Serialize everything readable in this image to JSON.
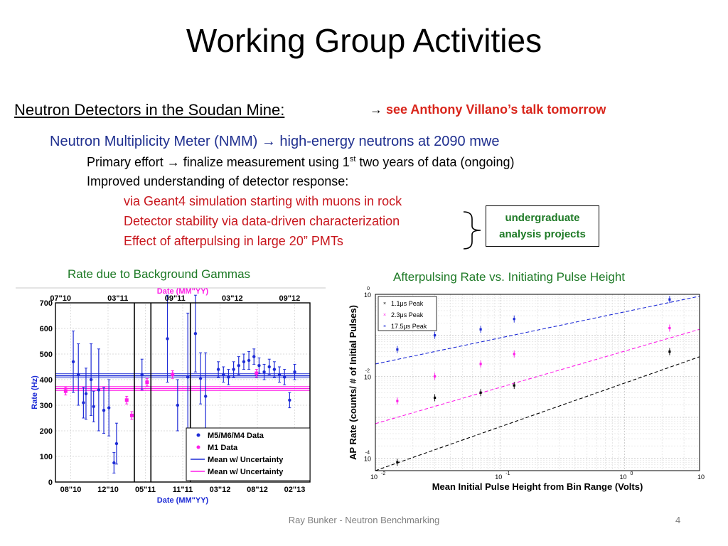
{
  "title": "Working Group Activities",
  "section": {
    "heading": "Neutron Detectors in the Soudan Mine:",
    "arrow": "→",
    "ref": "see Anthony Villano’s talk tomorrow"
  },
  "nmm": {
    "line": "Neutron Multiplicity Meter (NMM)  →  high-energy neutrons at 2090 mwe",
    "primary_pre": "Primary effort  →  finalize measurement using 1",
    "primary_sup": "st",
    "primary_post": " two years of data (ongoing)",
    "improved": "Improved understanding of detector response:",
    "sub": [
      "via Geant4 simulation starting with muons in rock",
      "Detector stability via data-driven characterization",
      "Effect of afterpulsing in large 20” PMTs"
    ],
    "box": [
      "undergraduate",
      "analysis projects"
    ]
  },
  "chart_titles": {
    "left": "Rate due to Background Gammas",
    "right": "Afterpulsing Rate vs. Initiating Pulse Height"
  },
  "footer": "Ray Bunker - Neutron Benchmarking",
  "page_number": "4",
  "colors": {
    "blue_data": "#1d2bd6",
    "magenta_data": "#ff1de8",
    "text_green": "#1e7a26",
    "text_red": "#c8161d",
    "text_blue": "#1f2f8f"
  },
  "chart_data": [
    {
      "type": "scatter",
      "xlabel": "Date (MM\"YY)",
      "ylabel": "Rate (Hz)",
      "ylim": [
        0,
        700
      ],
      "yticks": [
        "0",
        "100",
        "200",
        "300",
        "400",
        "500",
        "600",
        "700"
      ],
      "xticks_bottom": [
        "08\"10",
        "12\"10",
        "05\"11",
        "11\"11",
        "03\"12",
        "08\"12",
        "02\"13"
      ],
      "xticks_top": [
        "07\"10",
        "03\"11",
        "09\"11",
        "03\"12",
        "09\"12"
      ],
      "grid": true,
      "legend_position": "bottom-right",
      "series": [
        {
          "name": "M5/M6/M4 Data",
          "color": "#1d2bd6",
          "points": [
            [
              0.07,
              470,
              120
            ],
            [
              0.09,
              420,
              120
            ],
            [
              0.11,
              310,
              60
            ],
            [
              0.12,
              345,
              100
            ],
            [
              0.14,
              400,
              140
            ],
            [
              0.15,
              295,
              60
            ],
            [
              0.17,
              360,
              160
            ],
            [
              0.19,
              280,
              90
            ],
            [
              0.21,
              290,
              110
            ],
            [
              0.23,
              75,
              40
            ],
            [
              0.24,
              150,
              80
            ],
            [
              0.34,
              420,
              60
            ],
            [
              0.44,
              560,
              170
            ],
            [
              0.48,
              300,
              100
            ],
            [
              0.52,
              410,
              250
            ],
            [
              0.55,
              580,
              150
            ],
            [
              0.57,
              405,
              100
            ],
            [
              0.59,
              335,
              170
            ],
            [
              0.64,
              440,
              30
            ],
            [
              0.66,
              420,
              30
            ],
            [
              0.68,
              410,
              30
            ],
            [
              0.7,
              440,
              30
            ],
            [
              0.72,
              455,
              35
            ],
            [
              0.74,
              470,
              30
            ],
            [
              0.76,
              475,
              35
            ],
            [
              0.78,
              490,
              30
            ],
            [
              0.8,
              455,
              30
            ],
            [
              0.82,
              430,
              30
            ],
            [
              0.84,
              450,
              30
            ],
            [
              0.86,
              440,
              30
            ],
            [
              0.88,
              420,
              30
            ],
            [
              0.9,
              410,
              30
            ],
            [
              0.92,
              320,
              30
            ],
            [
              0.94,
              430,
              30
            ]
          ],
          "mean": 415
        },
        {
          "name": "M1 Data",
          "color": "#ff1de8",
          "points": [
            [
              0.04,
              355,
              15
            ],
            [
              0.28,
              320,
              15
            ],
            [
              0.3,
              260,
              15
            ],
            [
              0.36,
              390,
              15
            ],
            [
              0.46,
              420,
              15
            ],
            [
              0.79,
              425,
              15
            ]
          ],
          "mean": 365
        }
      ],
      "legend": [
        "M5/M6/M4 Data",
        "M1 Data",
        "Mean w/ Uncertainty",
        "Mean w/ Uncertainty"
      ],
      "vlines_frac": [
        0.31,
        0.375,
        0.53
      ]
    },
    {
      "type": "scatter",
      "xlabel": "Mean Initial Pulse Height from Bin Range (Volts)",
      "ylabel": "AP Rate (counts/ # of Initial Pulses)",
      "xscale": "log",
      "yscale": "log",
      "xlim": [
        0.01,
        4
      ],
      "ylim": [
        5e-05,
        1
      ],
      "xticks": [
        "10",
        "10",
        "10",
        "10"
      ],
      "xticks_exp": [
        "-2",
        "-1",
        "0",
        ""
      ],
      "yticks": [
        "10",
        "10",
        "10"
      ],
      "yticks_exp": [
        "0",
        "-2",
        "-4"
      ],
      "grid": true,
      "legend_position": "top-left",
      "series": [
        {
          "name": "1.1μs Peak",
          "color": "#000000",
          "points": [
            [
              0.015,
              8e-05
            ],
            [
              0.03,
              0.003
            ],
            [
              0.07,
              0.004
            ],
            [
              0.13,
              0.006
            ],
            [
              2.3,
              0.04
            ]
          ],
          "fit": [
            [
              0.01,
              5e-05
            ],
            [
              4,
              0.03
            ]
          ]
        },
        {
          "name": "2.3μs Peak",
          "color": "#ff1de8",
          "points": [
            [
              0.015,
              0.0025
            ],
            [
              0.03,
              0.01
            ],
            [
              0.07,
              0.02
            ],
            [
              0.13,
              0.035
            ],
            [
              2.3,
              0.15
            ]
          ],
          "fit": [
            [
              0.01,
              0.0007
            ],
            [
              4,
              0.14
            ]
          ]
        },
        {
          "name": "17.5μs Peak",
          "color": "#1d2bd6",
          "points": [
            [
              0.015,
              0.045
            ],
            [
              0.03,
              0.1
            ],
            [
              0.07,
              0.14
            ],
            [
              0.13,
              0.25
            ],
            [
              2.3,
              0.75
            ]
          ],
          "fit": [
            [
              0.01,
              0.02
            ],
            [
              4,
              0.9
            ]
          ]
        }
      ]
    }
  ]
}
